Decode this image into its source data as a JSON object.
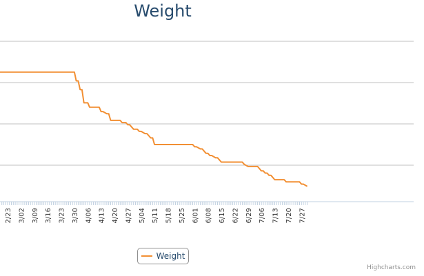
{
  "chart_data": {
    "type": "line",
    "title": "Weight",
    "xlabel": "",
    "ylabel": "",
    "x_tick_labels": [
      "2/23",
      "3/02",
      "3/09",
      "3/16",
      "3/23",
      "3/30",
      "4/06",
      "4/13",
      "4/20",
      "4/27",
      "5/04",
      "5/11",
      "5/18",
      "5/25",
      "6/01",
      "6/08",
      "6/15",
      "6/22",
      "6/29",
      "7/06",
      "7/13",
      "7/20",
      "7/27"
    ],
    "grid": true,
    "legend_position": "bottom-center",
    "series": [
      {
        "name": "Weight",
        "color": "#f28f33",
        "x": [
          "2/17",
          "3/30",
          "3/31",
          "4/01",
          "4/02",
          "4/03",
          "4/04",
          "4/06",
          "4/07",
          "4/12",
          "4/13",
          "4/14",
          "4/16",
          "4/17",
          "4/18",
          "4/23",
          "4/24",
          "4/26",
          "4/27",
          "4/28",
          "4/30",
          "5/02",
          "5/03",
          "5/04",
          "5/06",
          "5/07",
          "5/09",
          "5/10",
          "5/11",
          "5/12",
          "5/13",
          "5/14",
          "5/15",
          "5/31",
          "6/01",
          "6/02",
          "6/04",
          "6/05",
          "6/07",
          "6/08",
          "6/09",
          "6/10",
          "6/12",
          "6/13",
          "6/15",
          "6/16",
          "6/17",
          "6/18",
          "6/19",
          "6/20",
          "6/26",
          "6/27",
          "6/29",
          "7/03",
          "7/04",
          "7/05",
          "7/06",
          "7/07",
          "7/08",
          "7/09",
          "7/10",
          "7/11",
          "7/12",
          "7/13",
          "7/14",
          "7/15",
          "7/16",
          "7/17",
          "7/18",
          "7/19",
          "7/26",
          "7/27",
          "7/28",
          "7/30"
        ],
        "y": [
          40.9,
          40.9,
          40.7,
          40.7,
          40.5,
          40.5,
          40.2,
          40.2,
          40.1,
          40.1,
          40.0,
          40.0,
          39.95,
          39.95,
          39.8,
          39.8,
          39.75,
          39.75,
          39.7,
          39.7,
          39.6,
          39.6,
          39.55,
          39.55,
          39.5,
          39.5,
          39.4,
          39.4,
          39.25,
          39.25,
          39.25,
          39.25,
          39.25,
          39.25,
          39.2,
          39.2,
          39.15,
          39.15,
          39.05,
          39.05,
          39.0,
          39.0,
          38.95,
          38.95,
          38.85,
          38.85,
          38.85,
          38.85,
          38.85,
          38.85,
          38.85,
          38.8,
          38.75,
          38.75,
          38.75,
          38.7,
          38.65,
          38.65,
          38.6,
          38.6,
          38.55,
          38.55,
          38.5,
          38.45,
          38.45,
          38.45,
          38.45,
          38.45,
          38.45,
          38.4,
          38.4,
          38.35,
          38.35,
          38.3
        ]
      }
    ],
    "legend": {
      "label": "Weight"
    }
  },
  "credits": "Highcharts.com"
}
